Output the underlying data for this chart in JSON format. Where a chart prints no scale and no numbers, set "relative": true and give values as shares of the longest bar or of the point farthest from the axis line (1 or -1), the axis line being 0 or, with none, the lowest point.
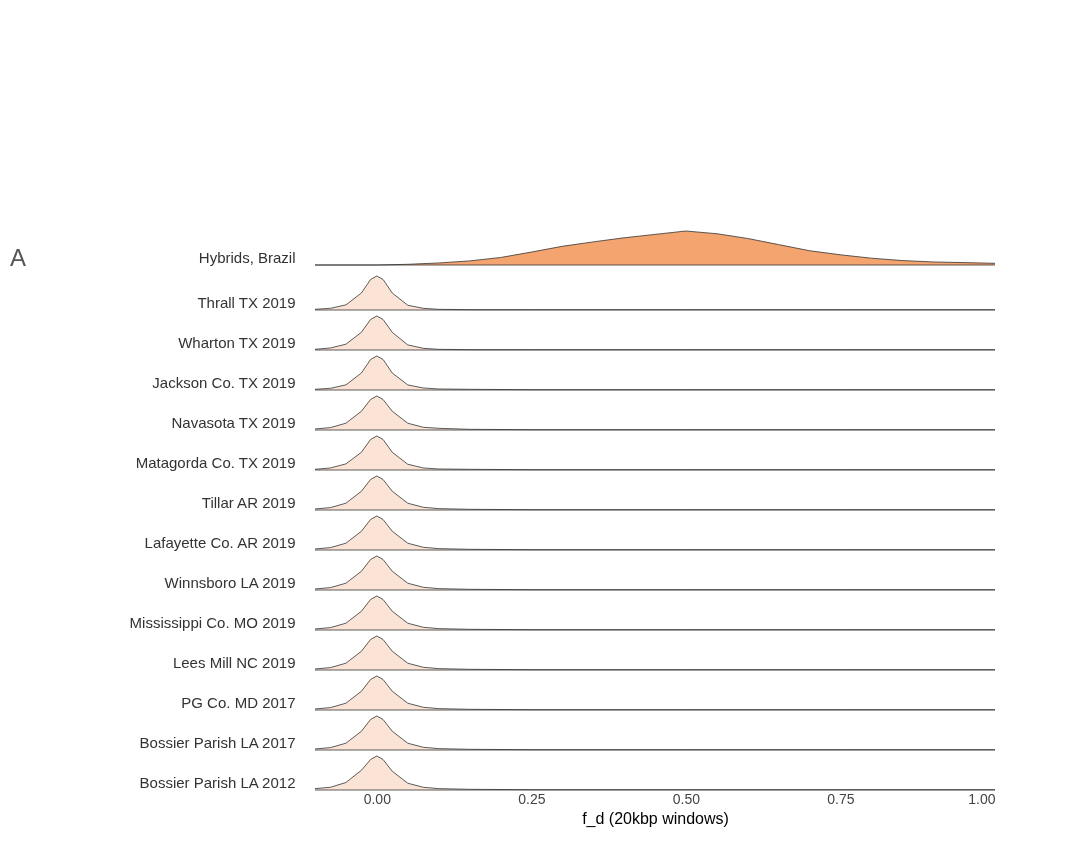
{
  "chart_data": [
    {
      "type": "area",
      "annotations": [
        "A"
      ],
      "ylabel": "Hybrids, Brazil",
      "relative": true,
      "color": "#f4a46e",
      "xlim": [
        -0.1,
        1.0
      ],
      "tick_labels": false,
      "x": [
        -0.1,
        0.0,
        0.05,
        0.1,
        0.15,
        0.2,
        0.25,
        0.3,
        0.35,
        0.4,
        0.45,
        0.5,
        0.55,
        0.6,
        0.65,
        0.7,
        0.75,
        0.8,
        0.85,
        0.9,
        0.95,
        1.0
      ],
      "values": [
        0,
        0,
        0.02,
        0.06,
        0.12,
        0.22,
        0.38,
        0.55,
        0.68,
        0.8,
        0.9,
        1,
        0.92,
        0.78,
        0.6,
        0.42,
        0.3,
        0.2,
        0.13,
        0.09,
        0.07,
        0.05
      ]
    },
    {
      "type": "area",
      "ylabel": "Thrall TX 2019",
      "relative": true,
      "color": "#fbe4d6",
      "xlim": [
        -0.1,
        1.0
      ],
      "tick_labels": false,
      "x": [
        -0.1,
        -0.075,
        -0.05,
        -0.025,
        -0.01,
        0,
        0.01,
        0.025,
        0.05,
        0.075,
        0.1,
        0.15,
        0.25,
        0.5,
        0.75,
        1.0
      ],
      "values": [
        0.02,
        0.05,
        0.15,
        0.5,
        0.9,
        1,
        0.9,
        0.5,
        0.14,
        0.05,
        0.02,
        0.01,
        0.01,
        0.01,
        0.01,
        0.01
      ]
    },
    {
      "type": "area",
      "ylabel": "Wharton TX 2019",
      "relative": true,
      "color": "#fbe4d6",
      "xlim": [
        -0.1,
        1.0
      ],
      "tick_labels": false,
      "x": [
        -0.1,
        -0.075,
        -0.05,
        -0.025,
        -0.01,
        0,
        0.01,
        0.025,
        0.05,
        0.075,
        0.1,
        0.15,
        0.25,
        0.5,
        0.75,
        1.0
      ],
      "values": [
        0.02,
        0.06,
        0.17,
        0.52,
        0.9,
        1,
        0.9,
        0.52,
        0.15,
        0.05,
        0.02,
        0.01,
        0.01,
        0.01,
        0.01,
        0.01
      ]
    },
    {
      "type": "area",
      "ylabel": "Jackson Co. TX 2019",
      "relative": true,
      "color": "#fbe4d6",
      "xlim": [
        -0.1,
        1.0
      ],
      "tick_labels": false,
      "x": [
        -0.1,
        -0.075,
        -0.05,
        -0.025,
        -0.01,
        0,
        0.01,
        0.025,
        0.05,
        0.075,
        0.1,
        0.15,
        0.25,
        0.5,
        0.75,
        1.0
      ],
      "values": [
        0.02,
        0.05,
        0.15,
        0.5,
        0.9,
        1,
        0.9,
        0.5,
        0.15,
        0.06,
        0.03,
        0.02,
        0.01,
        0.01,
        0.01,
        0.01
      ]
    },
    {
      "type": "area",
      "ylabel": "Navasota TX 2019",
      "relative": true,
      "color": "#fbe4d6",
      "xlim": [
        -0.1,
        1.0
      ],
      "tick_labels": false,
      "x": [
        -0.1,
        -0.075,
        -0.05,
        -0.025,
        -0.01,
        0,
        0.01,
        0.025,
        0.05,
        0.075,
        0.1,
        0.15,
        0.25,
        0.5,
        0.75,
        1.0
      ],
      "values": [
        0.03,
        0.07,
        0.2,
        0.55,
        0.9,
        1,
        0.9,
        0.55,
        0.2,
        0.08,
        0.05,
        0.02,
        0.01,
        0.01,
        0.01,
        0.01
      ]
    },
    {
      "type": "area",
      "ylabel": "Matagorda Co. TX 2019",
      "relative": true,
      "color": "#fbe4d6",
      "xlim": [
        -0.1,
        1.0
      ],
      "tick_labels": false,
      "x": [
        -0.1,
        -0.075,
        -0.05,
        -0.025,
        -0.01,
        0,
        0.01,
        0.025,
        0.05,
        0.075,
        0.1,
        0.15,
        0.25,
        0.5,
        0.75,
        1.0
      ],
      "values": [
        0.02,
        0.06,
        0.18,
        0.52,
        0.9,
        1,
        0.9,
        0.52,
        0.17,
        0.06,
        0.03,
        0.02,
        0.01,
        0.01,
        0.01,
        0.01
      ]
    },
    {
      "type": "area",
      "ylabel": "Tillar AR 2019",
      "relative": true,
      "color": "#fbe4d6",
      "xlim": [
        -0.1,
        1.0
      ],
      "tick_labels": false,
      "x": [
        -0.1,
        -0.075,
        -0.05,
        -0.025,
        -0.01,
        0,
        0.01,
        0.025,
        0.05,
        0.075,
        0.1,
        0.15,
        0.25,
        0.5,
        0.75,
        1.0
      ],
      "values": [
        0.03,
        0.07,
        0.2,
        0.55,
        0.9,
        1,
        0.9,
        0.55,
        0.2,
        0.08,
        0.04,
        0.02,
        0.01,
        0.01,
        0.01,
        0.01
      ]
    },
    {
      "type": "area",
      "ylabel": "Lafayette Co. AR 2019",
      "relative": true,
      "color": "#fbe4d6",
      "xlim": [
        -0.1,
        1.0
      ],
      "tick_labels": false,
      "x": [
        -0.1,
        -0.075,
        -0.05,
        -0.025,
        -0.01,
        0,
        0.01,
        0.025,
        0.05,
        0.075,
        0.1,
        0.15,
        0.25,
        0.5,
        0.75,
        1.0
      ],
      "values": [
        0.03,
        0.07,
        0.2,
        0.55,
        0.9,
        1,
        0.9,
        0.55,
        0.2,
        0.08,
        0.04,
        0.02,
        0.01,
        0.01,
        0.01,
        0.01
      ]
    },
    {
      "type": "area",
      "ylabel": "Winnsboro LA 2019",
      "relative": true,
      "color": "#fbe4d6",
      "xlim": [
        -0.1,
        1.0
      ],
      "tick_labels": false,
      "x": [
        -0.1,
        -0.075,
        -0.05,
        -0.025,
        -0.01,
        0,
        0.01,
        0.025,
        0.05,
        0.075,
        0.1,
        0.15,
        0.25,
        0.5,
        0.75,
        1.0
      ],
      "values": [
        0.03,
        0.07,
        0.2,
        0.55,
        0.9,
        1,
        0.9,
        0.55,
        0.2,
        0.08,
        0.04,
        0.02,
        0.01,
        0.01,
        0.01,
        0.01
      ]
    },
    {
      "type": "area",
      "ylabel": "Mississippi Co. MO 2019",
      "relative": true,
      "color": "#fbe4d6",
      "xlim": [
        -0.1,
        1.0
      ],
      "tick_labels": false,
      "x": [
        -0.1,
        -0.075,
        -0.05,
        -0.025,
        -0.01,
        0,
        0.01,
        0.025,
        0.05,
        0.075,
        0.1,
        0.15,
        0.25,
        0.5,
        0.75,
        1.0
      ],
      "values": [
        0.03,
        0.07,
        0.2,
        0.55,
        0.9,
        1,
        0.9,
        0.55,
        0.2,
        0.08,
        0.04,
        0.02,
        0.01,
        0.01,
        0.01,
        0.01
      ]
    },
    {
      "type": "area",
      "ylabel": "Lees Mill NC 2019",
      "relative": true,
      "color": "#fbe4d6",
      "xlim": [
        -0.1,
        1.0
      ],
      "tick_labels": false,
      "x": [
        -0.1,
        -0.075,
        -0.05,
        -0.025,
        -0.01,
        0,
        0.01,
        0.025,
        0.05,
        0.075,
        0.1,
        0.15,
        0.25,
        0.5,
        0.75,
        1.0
      ],
      "values": [
        0.03,
        0.07,
        0.2,
        0.55,
        0.9,
        1,
        0.9,
        0.55,
        0.2,
        0.08,
        0.04,
        0.02,
        0.01,
        0.01,
        0.01,
        0.01
      ]
    },
    {
      "type": "area",
      "ylabel": "PG Co. MD 2017",
      "relative": true,
      "color": "#fbe4d6",
      "xlim": [
        -0.1,
        1.0
      ],
      "tick_labels": false,
      "x": [
        -0.1,
        -0.075,
        -0.05,
        -0.025,
        -0.01,
        0,
        0.01,
        0.025,
        0.05,
        0.075,
        0.1,
        0.15,
        0.25,
        0.5,
        0.75,
        1.0
      ],
      "values": [
        0.03,
        0.07,
        0.2,
        0.55,
        0.9,
        1,
        0.9,
        0.55,
        0.2,
        0.08,
        0.04,
        0.02,
        0.01,
        0.01,
        0.01,
        0.01
      ]
    },
    {
      "type": "area",
      "ylabel": "Bossier Parish LA 2017",
      "relative": true,
      "color": "#fbe4d6",
      "xlim": [
        -0.1,
        1.0
      ],
      "tick_labels": false,
      "x": [
        -0.1,
        -0.075,
        -0.05,
        -0.025,
        -0.01,
        0,
        0.01,
        0.025,
        0.05,
        0.075,
        0.1,
        0.15,
        0.25,
        0.5,
        0.75,
        1.0
      ],
      "values": [
        0.03,
        0.07,
        0.2,
        0.55,
        0.9,
        1,
        0.9,
        0.55,
        0.2,
        0.08,
        0.04,
        0.02,
        0.01,
        0.01,
        0.01,
        0.01
      ]
    },
    {
      "type": "area",
      "ylabel": "Bossier Parish LA 2012",
      "xlabel": "f_d (20kbp  windows)",
      "relative": true,
      "color": "#fbe4d6",
      "xlim": [
        -0.1,
        1.0
      ],
      "xticks": [
        {
          "value": 0,
          "label": "0.00"
        },
        {
          "value": 0.25,
          "label": "0.25"
        },
        {
          "value": 0.5,
          "label": "0.50"
        },
        {
          "value": 0.75,
          "label": "0.75"
        },
        {
          "value": 1,
          "label": "1.00"
        }
      ],
      "tick_labels": "x",
      "x": [
        -0.1,
        -0.075,
        -0.05,
        -0.025,
        -0.01,
        0,
        0.01,
        0.025,
        0.05,
        0.075,
        0.1,
        0.15,
        0.25,
        0.5,
        0.75,
        1.0
      ],
      "values": [
        0.04,
        0.08,
        0.22,
        0.58,
        0.9,
        1,
        0.9,
        0.55,
        0.2,
        0.08,
        0.04,
        0.02,
        0.01,
        0.01,
        0.01,
        0.01
      ]
    }
  ]
}
